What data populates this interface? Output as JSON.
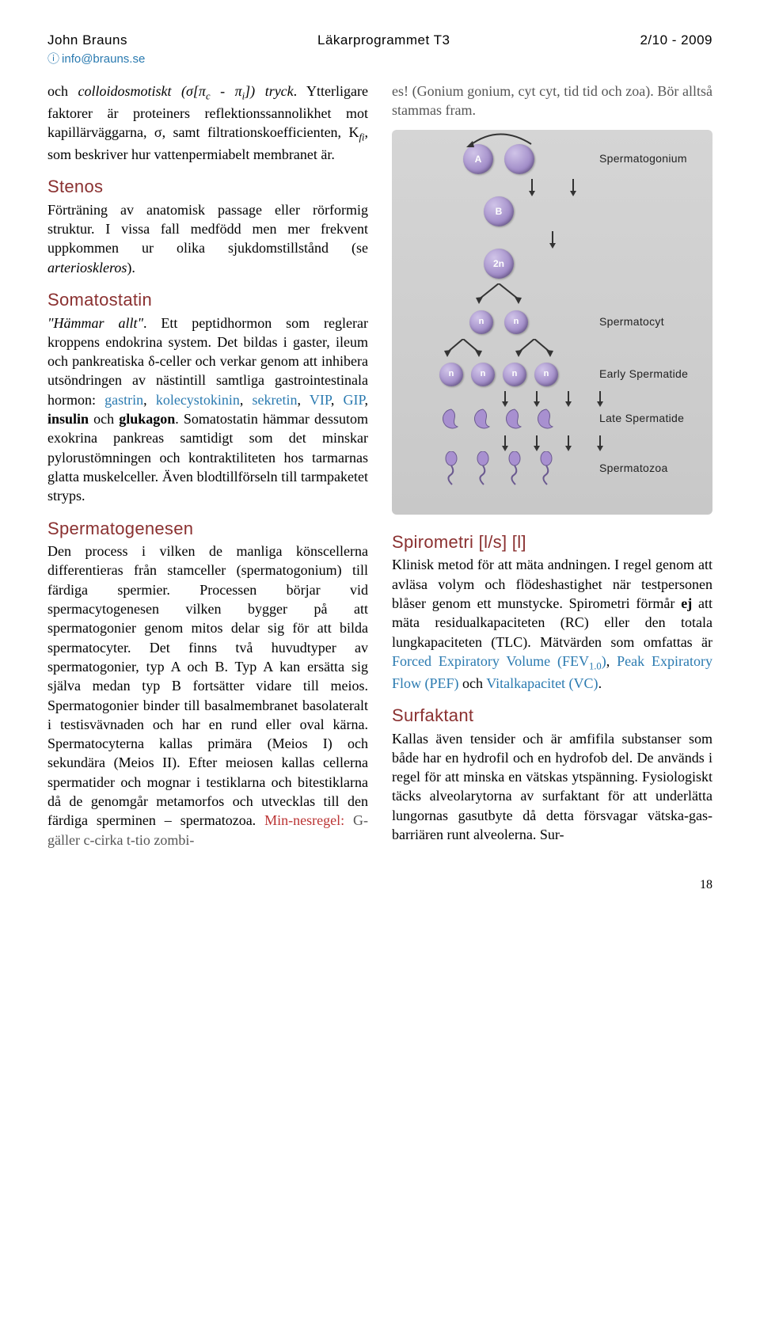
{
  "header": {
    "author": "John Brauns",
    "course": "Läkarprogrammet T3",
    "date": "2/10 - 2009",
    "email": "info@brauns.se"
  },
  "col1": {
    "intro_html": "och <i>colloidosmotiskt (σ[π<sub>c</sub> - π<sub>i</sub>]) tryck</i>. Ytterligare faktorer är proteiners reflektionssannolikhet mot kapillärväggarna, σ, samt filtrationskoefficienten, K<sub><i>fi</i></sub>, som beskriver hur vattenpermiabelt membranet är.",
    "stenos_title": "Stenos",
    "stenos_html": "Förträning av anatomisk passage eller rörformig struktur. I vissa fall medfödd men mer frekvent uppkommen ur olika sjukdomstillstånd (se <i>arterioskleros</i>).",
    "somatostatin_title": "Somatostatin",
    "somatostatin_html": "<i>\"Hämmar allt\"</i>. Ett peptidhormon som reglerar kroppens endokrina system. Det bildas i gaster, ileum och pankreatiska δ-celler och verkar genom att inhibera utsöndringen av nästintill samtliga gastrointestinala hormon: <span class=\"blue\">gastrin</span>, <span class=\"blue\">kolecystokinin</span>, <span class=\"blue\">sekretin</span>, <span class=\"blue\">VIP</span>, <span class=\"blue\">GIP</span>, <b>insulin</b> och <b>glukagon</b>. Somatostatin hämmar dessutom exokrina pankreas samtidigt som det minskar pylorustömningen och kontraktiliteten hos tarmarnas glatta muskelceller. Även blodtillförseln till tarmpaketet stryps.",
    "spermatogenesen_title": "Spermatogenesen",
    "spermatogenesen_html": "Den process i vilken de manliga könscellerna differentieras från stamceller (spermatogonium) till färdiga spermier. Processen börjar vid spermacytogenesen vilken bygger på att spermatogonier genom mitos delar sig för att bilda spermatocyter. Det finns två huvudtyper av spermatogonier, typ A och B. Typ A kan ersätta sig själva medan typ B fortsätter vidare till meios. Spermatogonier binder till basalmembranet basolateralt i testisvävnaden och har en rund eller oval kärna. Spermatocyterna kallas primära (Meios I) och sekundära (Meios II). Efter meiosen kallas cellerna spermatider och mognar i testiklarna och bitestiklarna då de genomgår metamorfos och utvecklas till den färdiga sperminen – spermatozoa. <span class=\"red\">Min-nesregel:</span> <span style=\"color:#555\">G-gäller c-cirka t-tio zombi-</span>"
  },
  "col2": {
    "note": "es! (Gonium gonium, cyt cyt, tid tid och zoa). Bör alltså stammas fram.",
    "diagram": {
      "cell_fill": "#9b85c4",
      "labels": [
        "Spermatogonium",
        "Spermatocyt",
        "Early Spermatide",
        "Late Spermatide",
        "Spermatozoa"
      ],
      "node_a": "A",
      "node_b": "B",
      "node_2n": "2n",
      "node_n": "n"
    },
    "spirometri_title": "Spirometri [l/s] [l]",
    "spirometri_html": "Klinisk metod för att mäta andningen. I regel genom att avläsa volym och flödeshastighet när testpersonen blåser genom ett munstycke. Spirometri förmår <b>ej</b> att mäta residualkapaciteten (RC) eller den totala lungkapaciteten (TLC). Mätvärden som omfattas är <span class=\"blue\">Forced Expiratory Volume (FEV<sub>1.0</sub>)</span>, <span class=\"blue\">Peak Expiratory Flow (PEF)</span> och <span class=\"blue\">Vitalkapacitet (VC)</span>.",
    "surfaktant_title": "Surfaktant",
    "surfaktant_html": "Kallas även tensider och är amfifila substanser som både har en hydrofil och en hydrofob del. De används i regel för att minska en vätskas ytspänning. Fysiologiskt täcks alveolarytorna av surfaktant för att underlätta lungornas gasutbyte då detta försvagar vätska-gas-barriären runt alveolerna. Sur-"
  },
  "page_number": "18"
}
